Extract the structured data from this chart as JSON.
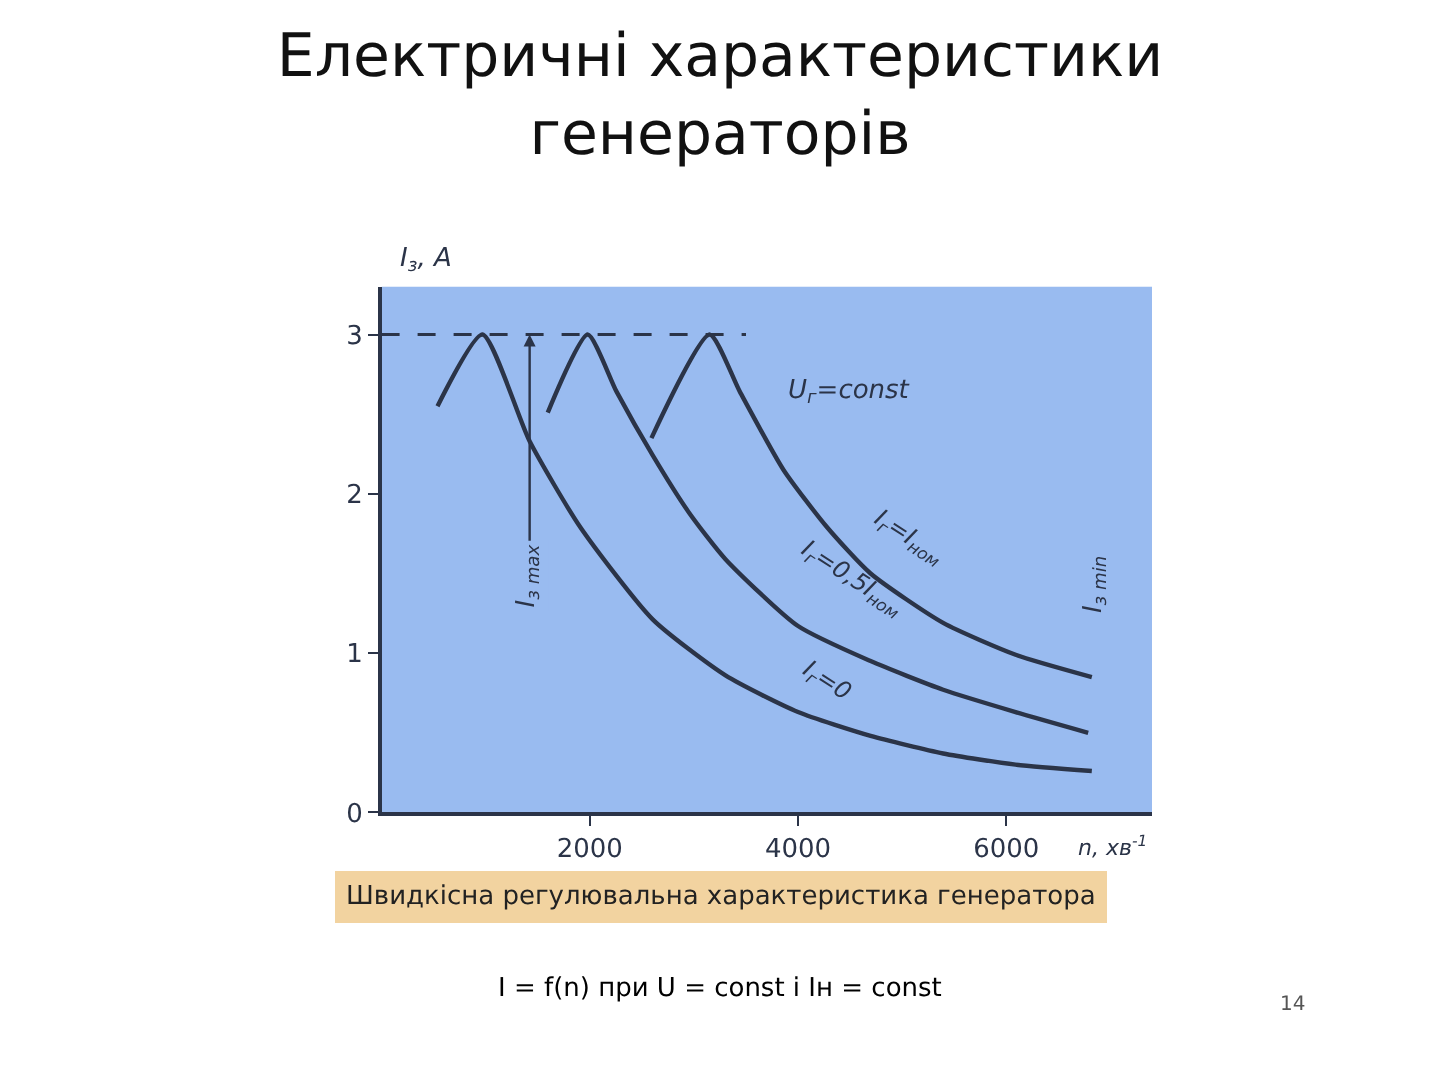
{
  "chart_data": {
    "type": "line",
    "title": "Електричні характеристики генераторів",
    "xlabel": "n, хв$^{-1}$",
    "ylabel": "I$_{з}$, A",
    "xlim": [
      0,
      7400
    ],
    "xticks": [
      2000,
      4000,
      6000
    ],
    "ylim": [
      0,
      3.3
    ],
    "yticks": [
      0,
      1,
      2,
      3
    ],
    "grid": false,
    "legend": false,
    "marker": "none",
    "series": [
      {
        "name": "I$_{г}$=0",
        "color": "#2b3448",
        "x": [
          537,
          969,
          1422,
          1909,
          2606,
          3303,
          4000,
          4697,
          5394,
          6090,
          6822
        ],
        "values": [
          2.55,
          3.0,
          2.33,
          1.79,
          1.21,
          0.86,
          0.63,
          0.48,
          0.37,
          0.3,
          0.26
        ]
      },
      {
        "name": "I$_{г}$=0,5I$_{ном}$",
        "color": "#2b3448",
        "x": [
          1596,
          1979,
          2258,
          2606,
          2955,
          3303,
          4000,
          4697,
          5394,
          6090,
          6787
        ],
        "values": [
          2.51,
          3.0,
          2.64,
          2.24,
          1.88,
          1.59,
          1.17,
          0.95,
          0.77,
          0.63,
          0.5
        ]
      },
      {
        "name": "I$_{г}$=I$_{ном}$",
        "color": "#2b3448",
        "x": [
          2592,
          3150,
          3442,
          3861,
          4279,
          4697,
          5394,
          6090,
          6822
        ],
        "values": [
          2.35,
          3.0,
          2.64,
          2.15,
          1.79,
          1.5,
          1.19,
          0.99,
          0.85
        ]
      },
      {
        "color": "#2b3448",
        "x": [
          0,
          3500
        ],
        "values": [
          3,
          3
        ],
        "line_style": "dashed"
      }
    ],
    "annotations": [
      "U$_{г}$=const",
      {
        "text": "I$_{з max}$",
        "x": 1422,
        "y": 3
      },
      "I$_{з min}$",
      "Швидкісна регулювальна характеристика генератора",
      "I = f(n) при U = const і Iн = const",
      "14"
    ]
  }
}
